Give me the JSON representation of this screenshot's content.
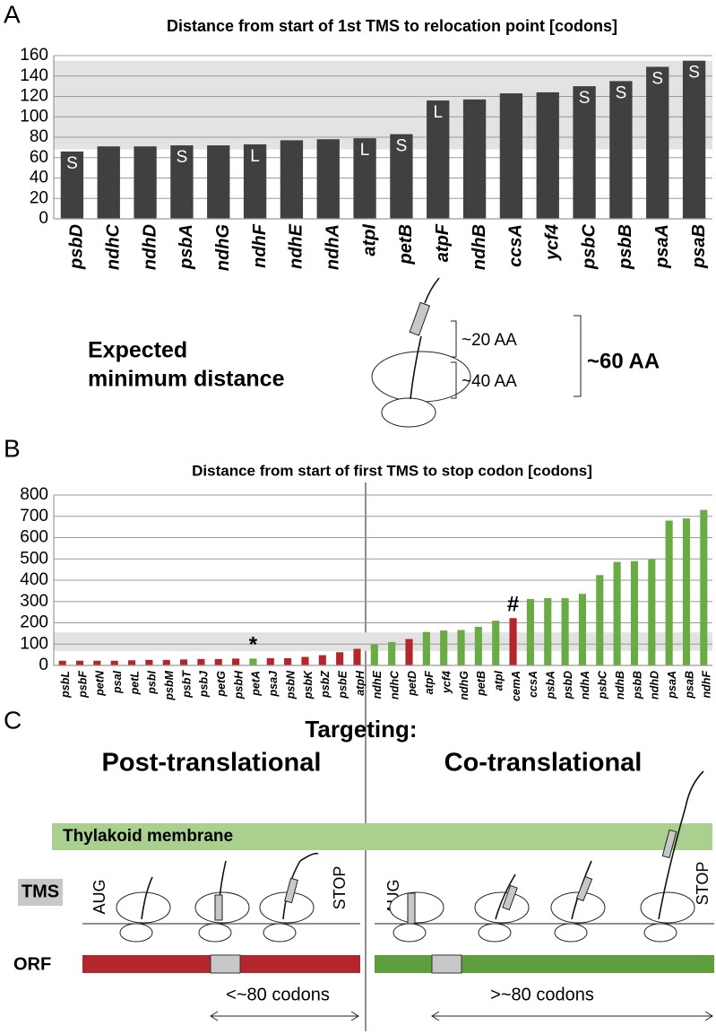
{
  "chart_data": [
    {
      "type": "bar",
      "panel": "A",
      "title": "Distance from start of 1st TMS to relocation point [codons]",
      "categories": [
        "psbD",
        "ndhC",
        "ndhD",
        "psbA",
        "ndhG",
        "ndhF",
        "ndhE",
        "ndhA",
        "atpI",
        "petB",
        "atpF",
        "ndhB",
        "ccsA",
        "ycf4",
        "psbC",
        "psbB",
        "psaA",
        "psaB"
      ],
      "values": [
        66,
        71,
        71,
        72,
        72,
        73,
        77,
        78,
        79,
        83,
        116,
        117,
        123,
        124,
        130,
        135,
        149,
        155
      ],
      "bar_labels": [
        "S",
        null,
        null,
        "S",
        null,
        "L",
        null,
        null,
        "L",
        "S",
        "L",
        null,
        null,
        null,
        "S",
        "S",
        "S",
        "S"
      ],
      "color": "#404040",
      "shaded_band": [
        68,
        155
      ],
      "ylim": [
        0,
        160
      ],
      "yticks": [
        0,
        20,
        40,
        60,
        80,
        100,
        120,
        140,
        160
      ],
      "grid": true
    },
    {
      "type": "bar",
      "panel": "B",
      "title": "Distance from start of first TMS to stop codon [codons]",
      "categories": [
        "psbL",
        "psbF",
        "petN",
        "psaI",
        "petL",
        "psbI",
        "psbM",
        "psbT",
        "psbJ",
        "petG",
        "psbH",
        "petA",
        "psaJ",
        "psbN",
        "psbK",
        "psbZ",
        "psbE",
        "atpH",
        "ndhE",
        "ndhC",
        "petD",
        "atpF",
        "ycf4",
        "ndhG",
        "petB",
        "atpI",
        "cemA",
        "ccsA",
        "psbA",
        "psbD",
        "ndhA",
        "psbC",
        "ndhB",
        "psbB",
        "ndhD",
        "psaA",
        "psaB",
        "ndhF"
      ],
      "values": [
        22,
        22,
        22,
        22,
        24,
        26,
        26,
        28,
        30,
        30,
        32,
        32,
        34,
        34,
        40,
        48,
        62,
        78,
        98,
        110,
        124,
        157,
        164,
        166,
        181,
        210,
        222,
        312,
        316,
        316,
        336,
        424,
        486,
        490,
        498,
        680,
        690,
        730
      ],
      "colors": [
        "#b3262b",
        "#b3262b",
        "#b3262b",
        "#b3262b",
        "#b3262b",
        "#b3262b",
        "#b3262b",
        "#b3262b",
        "#b3262b",
        "#b3262b",
        "#b3262b",
        "#6aab46",
        "#b3262b",
        "#b3262b",
        "#b3262b",
        "#b3262b",
        "#b3262b",
        "#b3262b",
        "#6aab46",
        "#6aab46",
        "#b3262b",
        "#6aab46",
        "#6aab46",
        "#6aab46",
        "#6aab46",
        "#6aab46",
        "#b3262b",
        "#6aab46",
        "#6aab46",
        "#6aab46",
        "#6aab46",
        "#6aab46",
        "#6aab46",
        "#6aab46",
        "#6aab46",
        "#6aab46",
        "#6aab46",
        "#6aab46"
      ],
      "bar_labels": [
        null,
        null,
        null,
        null,
        null,
        null,
        null,
        null,
        null,
        null,
        null,
        "*",
        null,
        null,
        null,
        null,
        null,
        null,
        null,
        null,
        null,
        null,
        null,
        null,
        null,
        null,
        "#",
        null,
        null,
        null,
        null,
        null,
        null,
        null,
        null,
        null,
        null,
        null
      ],
      "shaded_band": [
        68,
        155
      ],
      "ylim": [
        0,
        800
      ],
      "yticks": [
        0,
        100,
        200,
        300,
        400,
        500,
        600,
        700,
        800
      ],
      "grid": true
    }
  ],
  "expected": {
    "label_line1": "Expected",
    "label_line2": "minimum distance",
    "upper": "~20 AA",
    "lower": "~40 AA",
    "total": "~60 AA"
  },
  "targeting": {
    "panel": "C",
    "title": "Targeting:",
    "left_heading": "Post-translational",
    "right_heading": "Co-translational",
    "membrane": "Thylakoid membrane",
    "tms": "TMS",
    "orf": "ORF",
    "start": "AUG",
    "stop": "STOP",
    "left_range": "<~80 codons",
    "right_range": ">~80 codons"
  }
}
